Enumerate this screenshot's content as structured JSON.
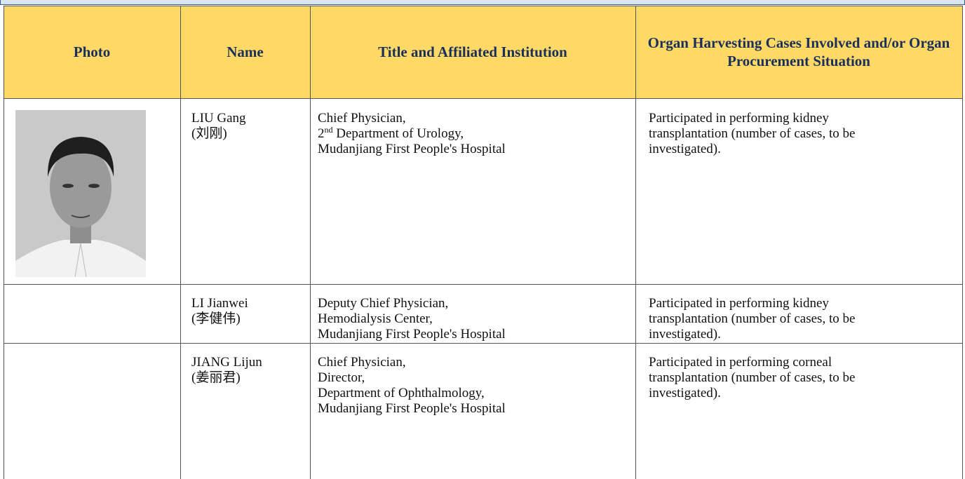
{
  "table": {
    "headers": [
      "Photo",
      "Name",
      "Title and Affiliated Institution",
      "Organ Harvesting Cases Involved and/or Organ Procurement Situation"
    ],
    "rows": [
      {
        "name": "LIU Gang",
        "name_zh": "(刘刚)",
        "title_lines": [
          "Chief Physician,",
          {
            "num": "2",
            "sup": "nd",
            "text": "Department of Urology,"
          },
          "Mudanjiang First People's Hospital"
        ],
        "cases": "Participated in performing kidney transplantation (number of cases, to be investigated)."
      },
      {
        "name": "LI Jianwei",
        "name_zh": "(李健伟)",
        "title_lines": [
          "Deputy Chief Physician,",
          "Hemodialysis Center,",
          "Mudanjiang First People's Hospital"
        ],
        "cases": "Participated in performing kidney transplantation (number of cases, to be investigated)."
      },
      {
        "name": "JIANG Lijun",
        "name_zh": "(姜丽君)",
        "title_lines": [
          "Chief Physician,",
          "Director,",
          "Department of Ophthalmology,",
          "Mudanjiang First People's Hospital"
        ],
        "cases": "Participated in performing corneal transplantation (number of cases, to be investigated)."
      }
    ]
  }
}
